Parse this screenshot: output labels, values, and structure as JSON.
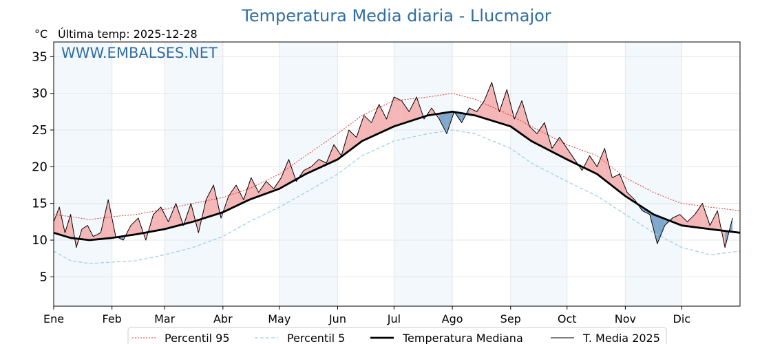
{
  "chart_data": {
    "type": "line",
    "title": "Temperatura Media diaria - Llucmajor",
    "unit_label": "°C",
    "last_temp_label": "Última temp: 2025-12-28",
    "watermark": "WWW.EMBALSES.NET",
    "ylim": [
      1,
      37
    ],
    "yticks": [
      5,
      10,
      15,
      20,
      25,
      30,
      35
    ],
    "xlim": [
      1,
      366
    ],
    "months": [
      {
        "label": "Ene",
        "day": 1
      },
      {
        "label": "Feb",
        "day": 32
      },
      {
        "label": "Mar",
        "day": 60
      },
      {
        "label": "Abr",
        "day": 91
      },
      {
        "label": "May",
        "day": 121
      },
      {
        "label": "Jun",
        "day": 152
      },
      {
        "label": "Jul",
        "day": 182
      },
      {
        "label": "Ago",
        "day": 213
      },
      {
        "label": "Sep",
        "day": 244
      },
      {
        "label": "Oct",
        "day": 274
      },
      {
        "label": "Nov",
        "day": 305
      },
      {
        "label": "Dic",
        "day": 335
      }
    ],
    "shaded_month_bands": [
      [
        1,
        32
      ],
      [
        60,
        91
      ],
      [
        121,
        152
      ],
      [
        182,
        213
      ],
      [
        244,
        274
      ],
      [
        305,
        335
      ]
    ],
    "series": [
      {
        "name": "Percentil 95",
        "color": "#e8352b",
        "style": "dotted",
        "x": [
          1,
          10,
          20,
          32,
          45,
          60,
          75,
          91,
          105,
          121,
          135,
          152,
          165,
          182,
          200,
          213,
          225,
          244,
          255,
          274,
          290,
          305,
          320,
          335,
          350,
          366
        ],
        "values": [
          13.5,
          13.2,
          12.8,
          13.2,
          13.5,
          14.2,
          15.0,
          15.8,
          17.0,
          19.0,
          21.5,
          24.5,
          27.0,
          29.0,
          29.5,
          30.0,
          29.2,
          27.0,
          25.5,
          23.0,
          21.5,
          18.5,
          16.5,
          15.0,
          14.5,
          14.0
        ]
      },
      {
        "name": "Percentil 5",
        "color": "#9fd0e6",
        "style": "dashed",
        "x": [
          1,
          10,
          20,
          32,
          45,
          60,
          75,
          91,
          105,
          121,
          135,
          152,
          165,
          182,
          200,
          213,
          225,
          244,
          255,
          274,
          290,
          305,
          320,
          335,
          350,
          366
        ],
        "values": [
          8.5,
          7.2,
          6.8,
          7.0,
          7.2,
          8.0,
          9.0,
          10.5,
          12.5,
          14.5,
          16.5,
          19.0,
          21.5,
          23.5,
          24.5,
          25.0,
          24.5,
          22.5,
          20.5,
          18.0,
          16.0,
          13.5,
          11.0,
          9.0,
          8.0,
          8.5
        ]
      },
      {
        "name": "Temperatura Mediana",
        "color": "#000000",
        "style": "solid-thick",
        "x": [
          1,
          10,
          20,
          32,
          45,
          60,
          75,
          91,
          105,
          121,
          135,
          152,
          165,
          182,
          200,
          213,
          225,
          244,
          255,
          274,
          290,
          305,
          320,
          335,
          350,
          366
        ],
        "values": [
          11.0,
          10.3,
          10.0,
          10.3,
          10.8,
          11.5,
          12.5,
          13.8,
          15.5,
          17.0,
          19.0,
          21.0,
          23.5,
          25.5,
          27.0,
          27.5,
          27.0,
          25.5,
          23.5,
          21.0,
          19.0,
          16.0,
          13.5,
          12.0,
          11.5,
          11.0
        ]
      },
      {
        "name": "T. Media 2025",
        "color": "#000000",
        "style": "solid-thin",
        "x": [
          1,
          4,
          7,
          10,
          13,
          16,
          19,
          22,
          26,
          30,
          34,
          38,
          42,
          46,
          50,
          54,
          58,
          62,
          66,
          70,
          74,
          78,
          82,
          86,
          90,
          94,
          98,
          102,
          106,
          110,
          114,
          118,
          122,
          126,
          130,
          134,
          138,
          142,
          146,
          150,
          154,
          158,
          162,
          166,
          170,
          174,
          178,
          182,
          186,
          190,
          194,
          198,
          202,
          206,
          210,
          214,
          218,
          222,
          226,
          230,
          234,
          238,
          242,
          246,
          250,
          254,
          258,
          262,
          266,
          270,
          274,
          278,
          282,
          286,
          290,
          294,
          298,
          302,
          306,
          310,
          314,
          318,
          322,
          326,
          330,
          334,
          338,
          342,
          346,
          350,
          354,
          358,
          362
        ],
        "values": [
          12.5,
          14.5,
          11.0,
          13.5,
          9.0,
          11.5,
          12.0,
          10.5,
          11.0,
          15.5,
          10.5,
          10.0,
          12.0,
          13.0,
          10.0,
          13.5,
          14.5,
          12.5,
          15.0,
          12.0,
          15.0,
          11.0,
          15.5,
          17.5,
          13.0,
          16.0,
          17.5,
          15.5,
          18.5,
          16.5,
          18.0,
          17.0,
          18.5,
          21.0,
          18.0,
          19.5,
          20.0,
          21.0,
          20.5,
          23.0,
          21.5,
          25.0,
          24.0,
          27.0,
          26.0,
          28.5,
          26.5,
          29.5,
          29.0,
          27.5,
          29.5,
          26.5,
          28.0,
          26.5,
          24.5,
          27.5,
          26.0,
          28.0,
          27.5,
          29.0,
          31.5,
          27.5,
          30.5,
          26.5,
          29.0,
          25.5,
          24.5,
          26.0,
          22.5,
          24.0,
          22.5,
          21.0,
          19.5,
          21.5,
          20.0,
          22.5,
          18.5,
          19.0,
          16.5,
          15.5,
          14.0,
          13.5,
          9.5,
          12.0,
          13.0,
          13.5,
          12.5,
          13.5,
          15.0,
          12.0,
          14.0,
          9.0,
          13.0
        ]
      }
    ]
  }
}
